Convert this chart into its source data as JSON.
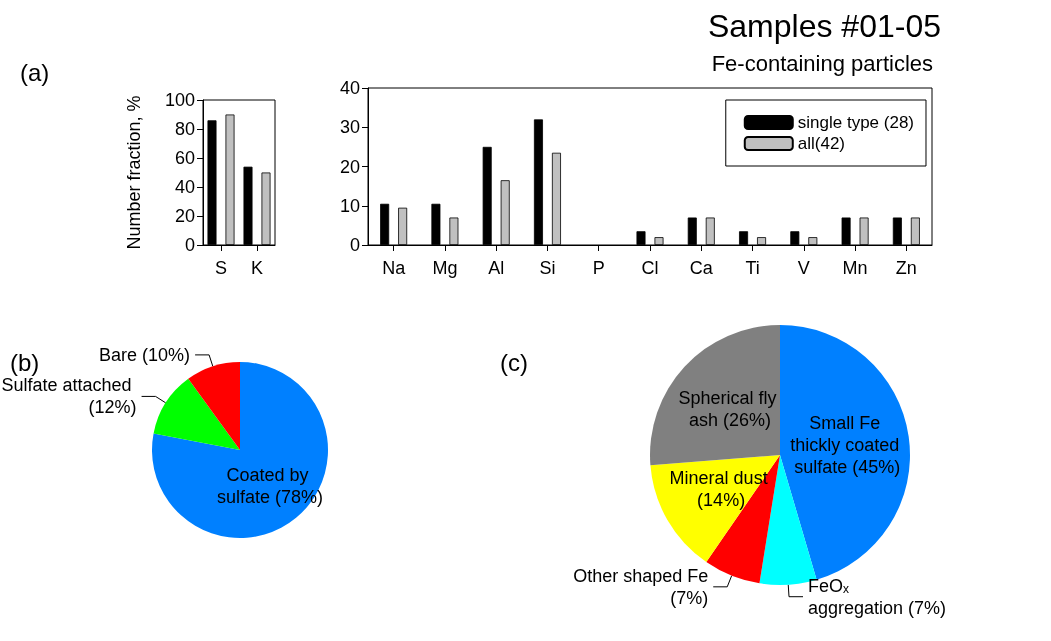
{
  "chart_data": [
    {
      "type": "bar",
      "ylabel": "Number fraction, %",
      "annotations": [
        "(a)"
      ],
      "categories": [
        "S",
        "K"
      ],
      "series": [
        {
          "color": "#000000",
          "values": [
            86,
            54
          ]
        },
        {
          "color": "#c0c0c0",
          "values": [
            90,
            50
          ]
        }
      ],
      "ylim": [
        0,
        100
      ],
      "yticks": [
        0,
        20,
        40,
        60,
        80,
        100
      ],
      "grid": false,
      "legend": false
    },
    {
      "type": "bar",
      "title": "Samples #01-05",
      "subtitle": "Fe-containing particles",
      "categories": [
        "Na",
        "Mg",
        "Al",
        "Si",
        "P",
        "Cl",
        "Ca",
        "Ti",
        "V",
        "Mn",
        "Zn"
      ],
      "series": [
        {
          "name": "single type (28)",
          "color": "#000000",
          "values": [
            10.5,
            10.5,
            25,
            32,
            0,
            3.5,
            7,
            3.5,
            3.5,
            7,
            7
          ]
        },
        {
          "name": "all(42)",
          "color": "#c0c0c0",
          "values": [
            9.5,
            7,
            16.5,
            23.5,
            0,
            2,
            7,
            2,
            2,
            7,
            7
          ]
        }
      ],
      "ylim": [
        0,
        40
      ],
      "yticks": [
        0,
        10,
        20,
        30,
        40
      ],
      "grid": false,
      "legend": "top right"
    },
    {
      "type": "pie",
      "annotations": [
        "(b)"
      ],
      "categories": [
        "Coated by sulfate (78%)",
        "Sulfate attached (12%)",
        "Bare (10%)"
      ],
      "values": [
        78,
        12,
        10
      ],
      "colors": [
        "#0080ff",
        "#00ff00",
        "#ff0000"
      ]
    },
    {
      "type": "pie",
      "annotations": [
        "(c)"
      ],
      "categories": [
        "Small Fe thickly coated sulfate (45%)",
        "FeOₓ aggregation (7%)",
        "Other shaped Fe (7%)",
        "Mineral dust (14%)",
        "Spherical fly ash (26%)"
      ],
      "values": [
        45,
        7,
        7,
        14,
        26
      ],
      "colors": [
        "#0080ff",
        "#00ffff",
        "#ff0000",
        "#ffff00",
        "#808080"
      ]
    }
  ]
}
